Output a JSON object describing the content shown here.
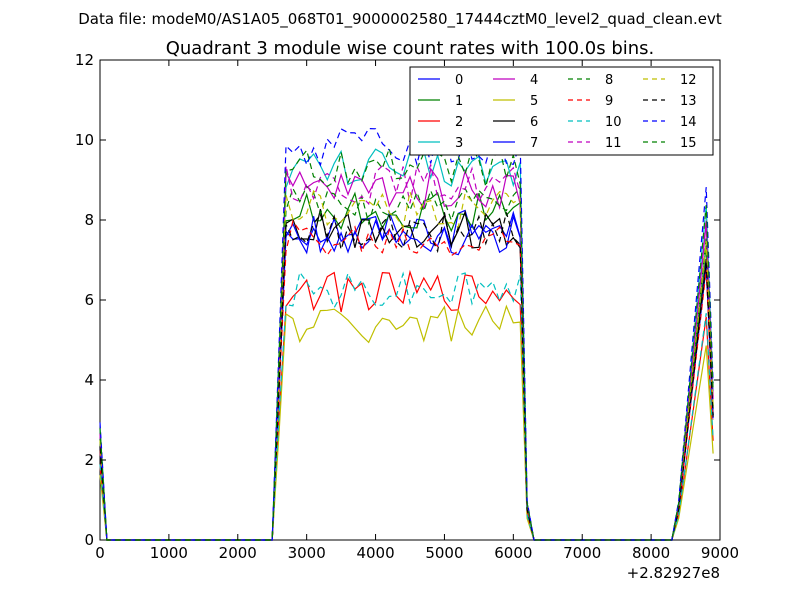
{
  "chart_data": {
    "type": "line",
    "suptitle": "Data file: modeM0/AS1A05_068T01_9000002580_17444cztM0_level2_quad_clean.evt",
    "title": "Quadrant 3 module wise count rates with 100.0s bins.",
    "xlabel": "",
    "ylabel": "",
    "x_offset_label": "+2.82927e8",
    "xlim": [
      0,
      9000
    ],
    "ylim": [
      0,
      12
    ],
    "x_ticks": [
      "0",
      "1000",
      "2000",
      "3000",
      "4000",
      "5000",
      "6000",
      "7000",
      "8000",
      "9000"
    ],
    "y_ticks": [
      "0",
      "2",
      "4",
      "6",
      "8",
      "10",
      "12"
    ],
    "legend_position": "top-right",
    "series": [
      {
        "name": "0",
        "color": "#0000ff",
        "dash": "solid",
        "level": 7.8
      },
      {
        "name": "1",
        "color": "#008000",
        "dash": "solid",
        "level": 8.2
      },
      {
        "name": "2",
        "color": "#ff0000",
        "dash": "solid",
        "level": 6.2
      },
      {
        "name": "3",
        "color": "#00bfbf",
        "dash": "solid",
        "level": 9.3
      },
      {
        "name": "4",
        "color": "#bf00bf",
        "dash": "solid",
        "level": 8.8
      },
      {
        "name": "5",
        "color": "#bfbf00",
        "dash": "solid",
        "level": 5.4
      },
      {
        "name": "6",
        "color": "#000000",
        "dash": "solid",
        "level": 7.8
      },
      {
        "name": "7",
        "color": "#0000ff",
        "dash": "solid",
        "level": 7.6
      },
      {
        "name": "8",
        "color": "#008000",
        "dash": "dashed",
        "level": 8.4
      },
      {
        "name": "9",
        "color": "#ff0000",
        "dash": "dashed",
        "level": 7.5
      },
      {
        "name": "10",
        "color": "#00bfbf",
        "dash": "dashed",
        "level": 6.3
      },
      {
        "name": "11",
        "color": "#bf00bf",
        "dash": "dashed",
        "level": 8.9
      },
      {
        "name": "12",
        "color": "#bfbf00",
        "dash": "dashed",
        "level": 8.3
      },
      {
        "name": "13",
        "color": "#000000",
        "dash": "dashed",
        "level": 7.7
      },
      {
        "name": "14",
        "color": "#0000ff",
        "dash": "dashed",
        "level": 9.8
      },
      {
        "name": "15",
        "color": "#008000",
        "dash": "dashed",
        "level": 9.3
      }
    ],
    "time_profile": {
      "x": [
        0,
        100,
        2450,
        2550,
        2600,
        2700,
        6050,
        6150,
        6200,
        6300,
        8250,
        8350,
        8500,
        8800,
        8850,
        8950
      ],
      "scale": [
        0.3,
        0,
        0,
        0,
        0.5,
        1,
        1,
        1,
        0.1,
        0,
        0,
        0,
        0.3,
        0.9,
        0.8,
        0
      ]
    }
  }
}
